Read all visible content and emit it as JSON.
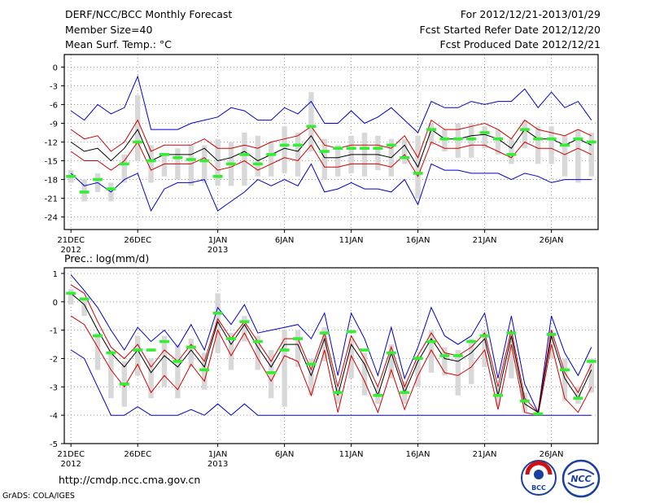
{
  "header": {
    "title": "DERF/NCC/BCC Monthly Forecast",
    "member_size": "Member Size=40",
    "variable": "Mean Surf. Temp.: °C",
    "period": "For 2012/12/21-2013/01/29",
    "started": "Fcst Started Refer Date 2012/12/20",
    "produced": "Fcst Produced Date 2012/12/21"
  },
  "footer": {
    "url": "http://cmdp.ncc.cma.gov.cn",
    "credit": "GrADS: COLA/IGES"
  },
  "logos": {
    "bcc": "BCC",
    "ncc": "NCC"
  },
  "colors": {
    "bar": "#d8d8d8",
    "mean": "#000000",
    "spread": "#d00000",
    "extreme": "#0000cc",
    "obs": "#33ee33"
  },
  "chart_data": [
    {
      "type": "line",
      "title": "Mean Surf. Temp.: °C",
      "ylabel": "°C",
      "ylim": [
        -26,
        2
      ],
      "yticks": [
        0,
        -3,
        -6,
        -9,
        -12,
        -15,
        -18,
        -21,
        -24
      ],
      "xticks": [
        {
          "day": 1,
          "label": "21DEC",
          "label2": "2012"
        },
        {
          "day": 6,
          "label": "26DEC"
        },
        {
          "day": 12,
          "label": "1JAN",
          "label2": "2013"
        },
        {
          "day": 17,
          "label": "6JAN"
        },
        {
          "day": 22,
          "label": "11JAN"
        },
        {
          "day": 27,
          "label": "16JAN"
        },
        {
          "day": 32,
          "label": "21JAN"
        },
        {
          "day": 37,
          "label": "26JAN"
        }
      ],
      "days": [
        1,
        2,
        3,
        4,
        5,
        6,
        7,
        8,
        9,
        10,
        11,
        12,
        13,
        14,
        15,
        16,
        17,
        18,
        19,
        20,
        21,
        22,
        23,
        24,
        25,
        26,
        27,
        28,
        29,
        30,
        31,
        32,
        33,
        34,
        35,
        36,
        37,
        38,
        39,
        40
      ],
      "mean": [
        -12.0,
        -13.5,
        -13.0,
        -15.0,
        -13.0,
        -10.0,
        -15.0,
        -14.0,
        -14.0,
        -14.0,
        -13.0,
        -15.0,
        -14.5,
        -13.5,
        -15.0,
        -14.0,
        -13.0,
        -13.5,
        -11.0,
        -14.5,
        -14.5,
        -14.0,
        -14.0,
        -14.0,
        -14.5,
        -12.5,
        -16.0,
        -10.0,
        -11.5,
        -11.5,
        -11.0,
        -10.8,
        -11.5,
        -13.0,
        -10.0,
        -11.5,
        -11.5,
        -12.5,
        -11.5,
        -12.5
      ],
      "upper": [
        -10.0,
        -11.5,
        -11.0,
        -13.5,
        -12.0,
        -8.5,
        -13.5,
        -12.5,
        -12.5,
        -12.5,
        -11.5,
        -13.0,
        -13.0,
        -12.5,
        -13.0,
        -12.0,
        -11.5,
        -11.0,
        -9.5,
        -12.5,
        -13.0,
        -12.5,
        -12.5,
        -12.5,
        -13.0,
        -11.0,
        -14.5,
        -8.5,
        -10.0,
        -10.0,
        -9.5,
        -9.0,
        -10.0,
        -11.5,
        -8.5,
        -10.0,
        -10.5,
        -11.0,
        -10.0,
        -11.0
      ],
      "lower": [
        -13.5,
        -15.0,
        -15.0,
        -16.5,
        -15.0,
        -12.0,
        -16.5,
        -15.5,
        -15.5,
        -15.5,
        -14.5,
        -16.5,
        -16.0,
        -15.0,
        -16.5,
        -15.5,
        -14.5,
        -15.0,
        -12.5,
        -16.0,
        -16.0,
        -15.5,
        -15.5,
        -15.5,
        -16.0,
        -14.0,
        -17.5,
        -12.0,
        -13.0,
        -13.0,
        -12.5,
        -12.5,
        -13.5,
        -14.5,
        -12.0,
        -13.0,
        -13.0,
        -14.0,
        -13.0,
        -14.0
      ],
      "max": [
        -7.0,
        -8.5,
        -6.0,
        -7.5,
        -6.5,
        -1.5,
        -10.0,
        -10.0,
        -10.0,
        -9.0,
        -8.5,
        -8.0,
        -6.5,
        -7.0,
        -8.5,
        -8.5,
        -6.5,
        -7.5,
        -5.5,
        -9.0,
        -9.0,
        -7.0,
        -9.0,
        -8.0,
        -6.5,
        -8.5,
        -10.5,
        -5.5,
        -6.5,
        -6.5,
        -5.5,
        -6.0,
        -5.5,
        -5.5,
        -3.5,
        -6.5,
        -4.0,
        -6.5,
        -5.5,
        -8.5
      ],
      "min": [
        -17.0,
        -19.0,
        -18.5,
        -20.0,
        -18.0,
        -17.0,
        -23.0,
        -19.5,
        -18.5,
        -18.5,
        -18.0,
        -23.0,
        -21.5,
        -20.0,
        -18.0,
        -19.0,
        -18.0,
        -19.0,
        -15.5,
        -20.0,
        -19.5,
        -18.5,
        -19.5,
        -19.5,
        -20.0,
        -18.0,
        -22.0,
        -15.5,
        -16.5,
        -16.5,
        -17.0,
        -17.0,
        -17.0,
        -18.0,
        -17.0,
        -17.5,
        -18.5,
        -18.0,
        -18.0,
        -18.0
      ],
      "bar_top": [
        -16.5,
        -18.0,
        -17.0,
        -18.5,
        -14.0,
        -4.5,
        -12.5,
        -14.0,
        -13.0,
        -12.5,
        -12.5,
        -11.5,
        -12.0,
        -10.5,
        -11.0,
        -12.0,
        -9.5,
        -10.5,
        -4.0,
        -11.5,
        -12.5,
        -11.0,
        -10.5,
        -11.0,
        -11.5,
        -11.5,
        -11.0,
        -9.0,
        -10.0,
        -9.0,
        -9.0,
        -9.5,
        -10.0,
        -11.5,
        -8.5,
        -9.5,
        -9.5,
        -11.0,
        -10.0,
        -10.5
      ],
      "bar_bottom": [
        -18.5,
        -21.5,
        -20.0,
        -21.5,
        -18.5,
        -15.0,
        -18.5,
        -17.5,
        -18.0,
        -19.0,
        -18.5,
        -19.0,
        -19.0,
        -19.0,
        -17.5,
        -17.5,
        -17.0,
        -17.5,
        -13.5,
        -18.0,
        -17.5,
        -17.0,
        -17.5,
        -16.5,
        -17.5,
        -15.5,
        -21.0,
        -12.5,
        -13.5,
        -14.5,
        -14.5,
        -13.0,
        -14.0,
        -15.5,
        -13.0,
        -15.5,
        -15.5,
        -17.5,
        -18.5,
        -17.5
      ],
      "obs": [
        -17.5,
        -20.0,
        -18.0,
        -19.5,
        -15.5,
        -12.0,
        -15.0,
        -14.0,
        -14.5,
        -14.8,
        -15.0,
        -17.5,
        -15.5,
        -14.0,
        -15.5,
        -14.0,
        -12.5,
        -12.5,
        -9.5,
        -13.5,
        -13.0,
        -13.0,
        -13.0,
        -13.0,
        -12.5,
        -14.5,
        -17.0,
        -10.0,
        -11.5,
        -11.5,
        -11.5,
        -10.5,
        -11.5,
        -14.0,
        -10.0,
        -11.5,
        -11.5,
        -12.5,
        -11.5,
        -12.0
      ]
    },
    {
      "type": "line",
      "title": "Prec.: log(mm/d)",
      "ylabel": "log(mm/d)",
      "ylim": [
        -5,
        1.2
      ],
      "yticks": [
        1,
        0,
        -1,
        -2,
        -3,
        -4,
        -5
      ],
      "xticks": [
        {
          "day": 1,
          "label": "21DEC",
          "label2": "2012"
        },
        {
          "day": 6,
          "label": "26DEC"
        },
        {
          "day": 12,
          "label": "1JAN",
          "label2": "2013"
        },
        {
          "day": 17,
          "label": "6JAN"
        },
        {
          "day": 22,
          "label": "11JAN"
        },
        {
          "day": 27,
          "label": "16JAN"
        },
        {
          "day": 32,
          "label": "21JAN"
        },
        {
          "day": 37,
          "label": "26JAN"
        }
      ],
      "days": [
        1,
        2,
        3,
        4,
        5,
        6,
        7,
        8,
        9,
        10,
        11,
        12,
        13,
        14,
        15,
        16,
        17,
        18,
        19,
        20,
        21,
        22,
        23,
        24,
        25,
        26,
        27,
        28,
        29,
        30,
        31,
        32,
        33,
        34,
        35,
        36,
        37,
        38,
        39,
        40
      ],
      "mean": [
        0.3,
        -0.1,
        -1.0,
        -1.8,
        -2.3,
        -1.7,
        -2.5,
        -1.9,
        -2.3,
        -1.7,
        -2.3,
        -0.7,
        -1.5,
        -0.8,
        -1.6,
        -2.3,
        -1.5,
        -1.5,
        -2.6,
        -1.3,
        -3.3,
        -1.5,
        -2.2,
        -3.3,
        -1.8,
        -3.2,
        -2.1,
        -1.3,
        -2.0,
        -2.1,
        -1.8,
        -1.3,
        -3.3,
        -1.2,
        -3.6,
        -3.9,
        -1.2,
        -2.7,
        -3.4,
        -2.4
      ],
      "upper": [
        0.6,
        0.3,
        -0.7,
        -1.6,
        -2.0,
        -1.5,
        -2.3,
        -1.7,
        -2.1,
        -1.5,
        -2.1,
        -0.6,
        -1.3,
        -0.7,
        -1.4,
        -2.1,
        -1.3,
        -1.3,
        -2.4,
        -1.1,
        -3.0,
        -1.2,
        -2.0,
        -3.0,
        -1.6,
        -3.0,
        -1.9,
        -1.1,
        -1.8,
        -1.9,
        -1.6,
        -1.1,
        -3.0,
        -1.0,
        -3.4,
        -3.9,
        -1.0,
        -2.5,
        -3.2,
        -2.2
      ],
      "lower": [
        -0.5,
        -0.8,
        -1.6,
        -2.4,
        -3.0,
        -2.2,
        -3.2,
        -2.6,
        -3.1,
        -2.2,
        -2.8,
        -1.0,
        -1.9,
        -1.1,
        -2.0,
        -2.8,
        -1.9,
        -2.1,
        -3.3,
        -1.7,
        -3.9,
        -1.9,
        -2.8,
        -3.9,
        -2.4,
        -3.8,
        -2.6,
        -1.7,
        -2.5,
        -2.6,
        -2.3,
        -1.7,
        -3.8,
        -1.5,
        -3.9,
        -4.0,
        -1.5,
        -3.4,
        -3.9,
        -3.0
      ],
      "max": [
        0.95,
        0.4,
        -0.2,
        -1.0,
        -1.7,
        -0.9,
        -1.4,
        -1.0,
        -1.6,
        -0.8,
        -1.7,
        -0.2,
        -0.8,
        -0.1,
        -1.1,
        -1.0,
        -0.9,
        -0.8,
        -1.3,
        -0.4,
        -2.6,
        -0.4,
        -1.3,
        -2.6,
        -0.9,
        -2.7,
        -1.6,
        -0.2,
        -1.2,
        -1.5,
        -1.2,
        -0.4,
        -2.7,
        -0.5,
        -2.9,
        -3.9,
        -0.5,
        -1.8,
        -2.6,
        -1.6
      ],
      "min": [
        -1.7,
        -2.0,
        -3.0,
        -4.0,
        -4.0,
        -3.7,
        -4.0,
        -4.0,
        -4.0,
        -3.8,
        -4.0,
        -3.6,
        -4.0,
        -3.6,
        -4.0,
        -4.0,
        -4.0,
        -4.0,
        -4.0,
        -4.0,
        -4.0,
        -4.0,
        -4.0,
        -4.0,
        -4.0,
        -4.0,
        -4.0,
        -4.0,
        -4.0,
        -4.0,
        -4.0,
        -4.0,
        -4.0,
        -4.0,
        -4.0,
        -4.0,
        -4.0,
        -4.0,
        -4.0,
        -4.0
      ],
      "bar_top": [
        0.45,
        0.05,
        -1.1,
        -1.7,
        -2.1,
        -1.2,
        -2.0,
        -1.2,
        -1.5,
        -1.3,
        -1.8,
        0.3,
        -1.1,
        -0.5,
        -1.2,
        -1.7,
        -1.0,
        -1.0,
        -2.0,
        -0.9,
        -3.0,
        -1.3,
        -1.8,
        -3.0,
        -1.5,
        -2.8,
        -1.9,
        -1.0,
        -1.6,
        -1.7,
        -1.3,
        -1.0,
        -3.0,
        -1.0,
        -3.2,
        -3.9,
        -1.0,
        -2.0,
        -3.0,
        -2.0
      ],
      "bar_bottom": [
        -0.1,
        -0.5,
        -2.4,
        -3.4,
        -3.7,
        -2.6,
        -3.4,
        -3.0,
        -3.4,
        -2.3,
        -3.1,
        -1.8,
        -2.4,
        -1.4,
        -2.4,
        -3.4,
        -3.7,
        -2.3,
        -3.3,
        -2.1,
        -3.6,
        -2.7,
        -3.3,
        -3.6,
        -2.7,
        -3.6,
        -3.0,
        -2.5,
        -2.6,
        -3.3,
        -2.9,
        -2.3,
        -3.7,
        -2.7,
        -3.9,
        -4.0,
        -2.0,
        -3.5,
        -3.6,
        -3.2
      ],
      "obs": [
        0.3,
        0.1,
        -1.2,
        -1.8,
        -2.9,
        -1.7,
        -1.7,
        -1.4,
        -2.1,
        -1.6,
        -2.4,
        -0.4,
        -1.3,
        -0.7,
        -1.4,
        -2.5,
        -1.7,
        -1.3,
        -2.2,
        -1.1,
        -3.2,
        -1.05,
        -1.7,
        -3.3,
        -1.8,
        -3.2,
        -2.0,
        -1.4,
        -1.9,
        -1.9,
        -1.4,
        -1.2,
        -3.3,
        -1.1,
        -3.5,
        -3.95,
        -1.15,
        -2.4,
        -3.4,
        -2.1
      ]
    }
  ]
}
